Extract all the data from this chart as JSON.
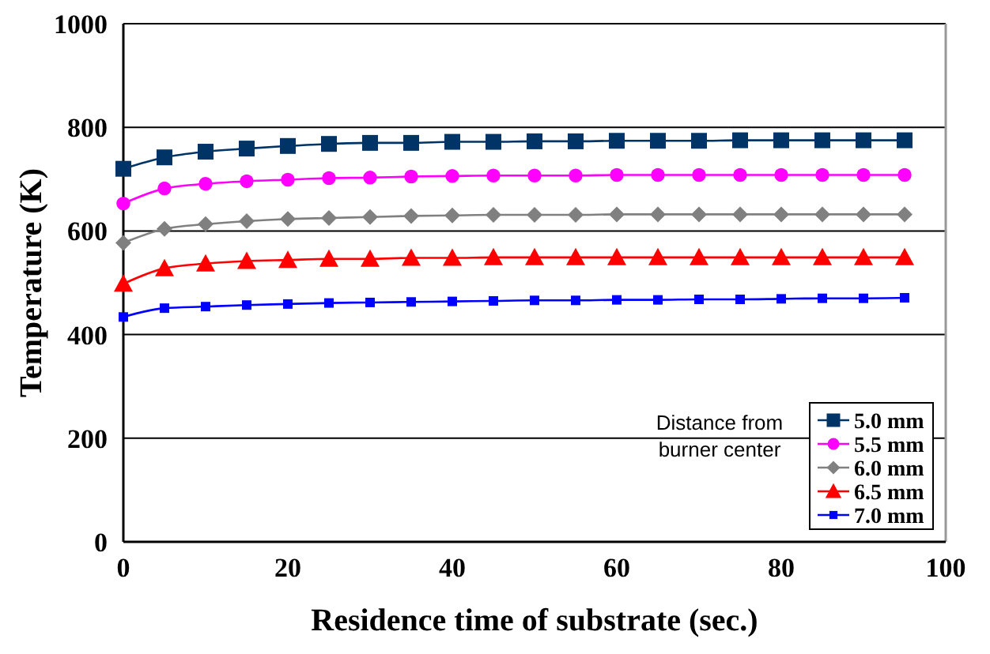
{
  "chart_data": {
    "type": "line",
    "xlabel": "Residence time of substrate (sec.)",
    "ylabel": "Temperature (K)",
    "legend_title": "Distance from burner center",
    "legend": "bottom right",
    "grid": "y",
    "line_style": "solid",
    "x": [
      0,
      5,
      10,
      15,
      20,
      25,
      30,
      35,
      40,
      45,
      50,
      55,
      60,
      65,
      70,
      75,
      80,
      85,
      90,
      95
    ],
    "xlim": [
      0,
      100
    ],
    "xticks": [
      0,
      20,
      40,
      60,
      80,
      100
    ],
    "ylim": [
      0,
      1000
    ],
    "yticks": [
      0,
      200,
      400,
      600,
      800,
      1000
    ],
    "series": [
      {
        "name": "5.0 mm",
        "color": "#003366",
        "marker": "square",
        "values": [
          720,
          742,
          753,
          759,
          764,
          768,
          770,
          770,
          772,
          772,
          773,
          773,
          774,
          774,
          774,
          775,
          775,
          775,
          775,
          775
        ]
      },
      {
        "name": "5.5 mm",
        "color": "#ff00ff",
        "marker": "circle",
        "values": [
          653,
          682,
          691,
          696,
          699,
          702,
          703,
          705,
          706,
          707,
          707,
          707,
          708,
          708,
          708,
          708,
          708,
          708,
          708,
          708
        ]
      },
      {
        "name": "6.0 mm",
        "color": "#808080",
        "marker": "diamond",
        "values": [
          577,
          604,
          613,
          619,
          623,
          625,
          627,
          629,
          630,
          631,
          631,
          631,
          632,
          632,
          632,
          632,
          632,
          632,
          632,
          632
        ]
      },
      {
        "name": "6.5 mm",
        "color": "#ff0000",
        "marker": "triangle",
        "values": [
          498,
          528,
          537,
          542,
          544,
          546,
          546,
          548,
          548,
          549,
          549,
          549,
          549,
          549,
          549,
          549,
          549,
          549,
          549,
          549
        ]
      },
      {
        "name": "7.0 mm",
        "color": "#0000ff",
        "marker": "square",
        "values": [
          434,
          451,
          454,
          457,
          459,
          461,
          462,
          463,
          464,
          465,
          466,
          466,
          467,
          467,
          468,
          468,
          469,
          470,
          470,
          471
        ]
      }
    ]
  }
}
